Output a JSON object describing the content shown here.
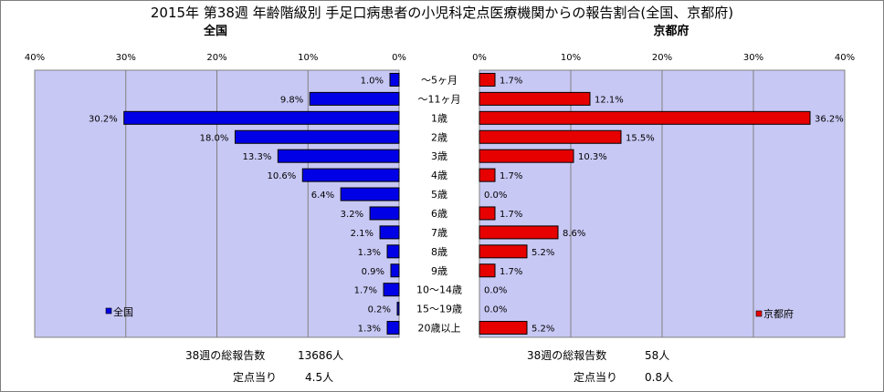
{
  "title": "2015年 第38週 年齢階級別 手足口病患者の小児科定点医療機関からの報告割合(全国、京都府)",
  "left_label": "全国",
  "right_label": "京都府",
  "legend": {
    "left": "全国",
    "right": "京都府"
  },
  "colors": {
    "national": "#0000e6",
    "kyoto": "#e60000",
    "plot_bg": "#c8c8f5"
  },
  "footer": {
    "left_total_label": "38週の総報告数",
    "left_total_value": "13686人",
    "left_per_label": "定点当り",
    "left_per_value": "4.5人",
    "right_total_label": "38週の総報告数",
    "right_total_value": "58人",
    "right_per_label": "定点当り",
    "right_per_value": "0.8人"
  },
  "chart_data": {
    "type": "bar",
    "orientation": "horizontal-butterfly",
    "categories": [
      "～5ヶ月",
      "～11ヶ月",
      "1歳",
      "2歳",
      "3歳",
      "4歳",
      "5歳",
      "6歳",
      "7歳",
      "8歳",
      "9歳",
      "10～14歳",
      "15～19歳",
      "20歳以上"
    ],
    "series": [
      {
        "name": "全国",
        "values": [
          1.0,
          9.8,
          30.2,
          18.0,
          13.3,
          10.6,
          6.4,
          3.2,
          2.1,
          1.3,
          0.9,
          1.7,
          0.2,
          1.3
        ],
        "labels": [
          "1.0%",
          "9.8%",
          "30.2%",
          "18.0%",
          "13.3%",
          "10.6%",
          "6.4%",
          "3.2%",
          "2.1%",
          "1.3%",
          "0.9%",
          "1.7%",
          "0.2%",
          "1.3%"
        ]
      },
      {
        "name": "京都府",
        "values": [
          1.7,
          12.1,
          36.2,
          15.5,
          10.3,
          1.7,
          0.0,
          1.7,
          8.6,
          5.2,
          1.7,
          0.0,
          0.0,
          5.2
        ],
        "labels": [
          "1.7%",
          "12.1%",
          "36.2%",
          "15.5%",
          "10.3%",
          "1.7%",
          "0.0%",
          "1.7%",
          "8.6%",
          "5.2%",
          "1.7%",
          "0.0%",
          "0.0%",
          "5.2%"
        ]
      }
    ],
    "xlim": [
      0,
      40
    ],
    "ticks": [
      "0%",
      "10%",
      "20%",
      "30%",
      "40%"
    ],
    "left_ticks": [
      "40%",
      "30%",
      "20%",
      "10%",
      "0%"
    ],
    "grid": true
  }
}
